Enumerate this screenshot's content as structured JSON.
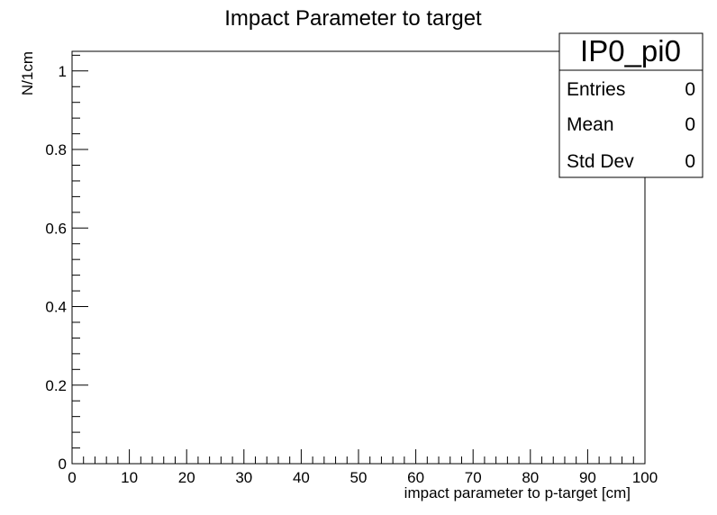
{
  "chart_data": {
    "type": "bar",
    "title": "Impact Parameter to target",
    "xlabel": "impact parameter to p-target   [cm]",
    "ylabel": "N/1cm",
    "xlim": [
      0,
      100
    ],
    "ylim": [
      0,
      1.05
    ],
    "x_ticks": [
      0,
      10,
      20,
      30,
      40,
      50,
      60,
      70,
      80,
      90,
      100
    ],
    "y_ticks": [
      0,
      0.2,
      0.4,
      0.6,
      0.8,
      1
    ],
    "x_tick_labels": [
      "0",
      "10",
      "20",
      "30",
      "40",
      "50",
      "60",
      "70",
      "80",
      "90",
      "100"
    ],
    "y_tick_labels": [
      "0",
      "0.2",
      "0.4",
      "0.6",
      "0.8",
      "1"
    ],
    "values": [],
    "grid": false,
    "stats_box": {
      "name": "IP0_pi0",
      "rows": [
        {
          "label": "Entries",
          "value": "0"
        },
        {
          "label": "Mean",
          "value": "0"
        },
        {
          "label": "Std Dev",
          "value": "0"
        }
      ]
    }
  }
}
